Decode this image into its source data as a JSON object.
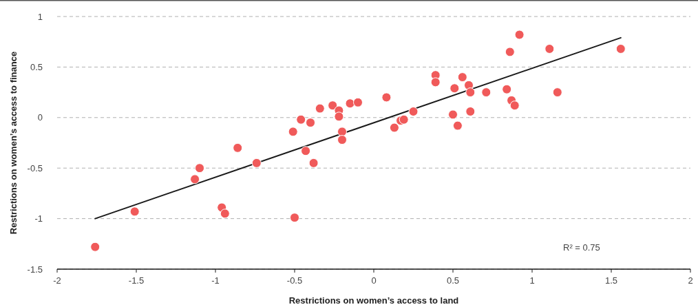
{
  "chart_data": {
    "type": "scatter",
    "xlabel": "Restrictions on women’s access to land",
    "ylabel": "Restrictions on women’s access to finance",
    "xlim": [
      -2,
      2
    ],
    "xticks": [
      -2,
      -1.5,
      -1,
      -0.5,
      0,
      0.5,
      1,
      1.5,
      2
    ],
    "ylim": [
      -1.5,
      1
    ],
    "yticks": [
      -1.5,
      -1,
      -0.5,
      0,
      0.5,
      1
    ],
    "grid": "y",
    "marker": "circle",
    "annotations": [
      "R² = 0.75"
    ],
    "series": [
      {
        "color": "#f05a5a",
        "x": [
          -1.76,
          -1.51,
          -1.13,
          -1.1,
          -0.96,
          -0.94,
          -0.86,
          -0.74,
          -0.51,
          -0.5,
          -0.46,
          -0.43,
          -0.4,
          -0.38,
          -0.34,
          -0.26,
          -0.22,
          -0.22,
          -0.2,
          -0.2,
          -0.15,
          -0.1,
          0.08,
          0.13,
          0.17,
          0.19,
          0.25,
          0.39,
          0.39,
          0.5,
          0.51,
          0.53,
          0.56,
          0.6,
          0.61,
          0.61,
          0.71,
          0.84,
          0.86,
          0.87,
          0.89,
          0.92,
          1.11,
          1.16,
          1.56
        ],
        "values": [
          -1.28,
          -0.93,
          -0.61,
          -0.5,
          -0.89,
          -0.95,
          -0.3,
          -0.45,
          -0.14,
          -0.99,
          -0.02,
          -0.33,
          -0.05,
          -0.45,
          0.09,
          0.12,
          0.07,
          0.01,
          -0.14,
          -0.22,
          0.14,
          0.15,
          0.2,
          -0.1,
          -0.03,
          -0.02,
          0.06,
          0.42,
          0.35,
          0.03,
          0.29,
          -0.08,
          0.4,
          0.32,
          0.25,
          0.06,
          0.25,
          0.28,
          0.65,
          0.17,
          0.12,
          0.82,
          0.68,
          0.25,
          0.68
        ]
      },
      {
        "type": "line",
        "color": "#1a1a1a",
        "x": [
          -1.76,
          1.56
        ],
        "values": [
          -1.0,
          0.79
        ],
        "marker": "none",
        "line_style": "solid"
      }
    ]
  }
}
